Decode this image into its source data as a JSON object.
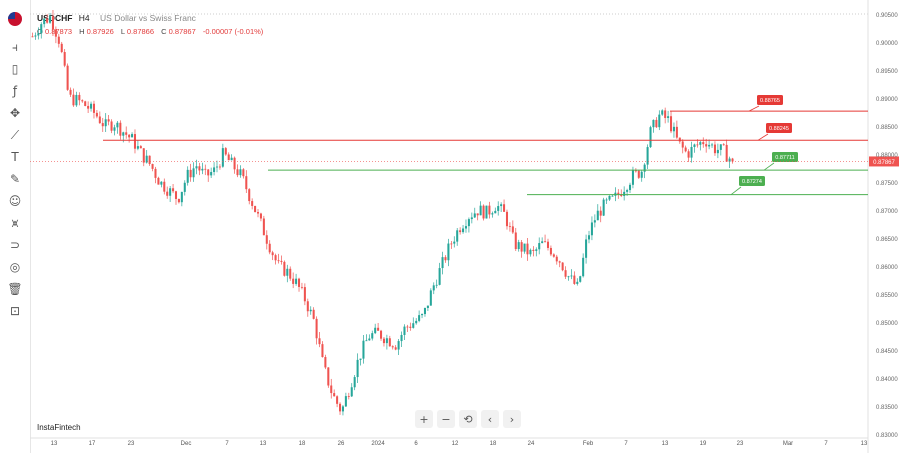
{
  "header": {
    "symbol": "USDCHF",
    "timeframe": "H4",
    "description": "US Dollar vs Swiss Franc",
    "open_label": "O",
    "open": "0.87873",
    "high_label": "H",
    "high": "0.87926",
    "low_label": "L",
    "low": "0.87866",
    "close_label": "C",
    "close": "0.87867",
    "change": "-0.00007 (-0.01%)"
  },
  "brand": "InstaFintech",
  "nav_buttons": [
    "+",
    "−",
    "⟲",
    "‹",
    "›"
  ],
  "colors": {
    "up": "#26a69a",
    "down": "#ef5350",
    "resistance": "#e53935",
    "support": "#4caf50",
    "price_tag": "#ef5350"
  },
  "chart_data": {
    "type": "candlestick",
    "ylim": [
      0.83,
      0.905
    ],
    "y_ticks": [
      "0.90500",
      "0.90000",
      "0.89500",
      "0.89000",
      "0.88500",
      "0.88000",
      "0.87500",
      "0.87000",
      "0.86500",
      "0.86000",
      "0.85500",
      "0.85000",
      "0.84500",
      "0.84000",
      "0.83500",
      "0.83000"
    ],
    "x_ticks": [
      "13",
      "17",
      "23",
      "Dec",
      "7",
      "13",
      "18",
      "26",
      "2024",
      "6",
      "12",
      "18",
      "24",
      "Feb",
      "7",
      "13",
      "19",
      "23",
      "Mar",
      "7",
      "13"
    ],
    "current_price": "0.87867",
    "levels": [
      {
        "label": "0.88765",
        "value": 0.88765,
        "kind": "resistance"
      },
      {
        "label": "0.88245",
        "value": 0.88245,
        "kind": "resistance"
      },
      {
        "label": "0.87711",
        "value": 0.87711,
        "kind": "support"
      },
      {
        "label": "0.87274",
        "value": 0.87274,
        "kind": "support"
      }
    ],
    "close_path": [
      0.901,
      0.9035,
      0.9045,
      0.9,
      0.89,
      0.8895,
      0.8885,
      0.887,
      0.885,
      0.8855,
      0.884,
      0.8825,
      0.88,
      0.878,
      0.875,
      0.8735,
      0.872,
      0.876,
      0.878,
      0.876,
      0.877,
      0.88,
      0.878,
      0.876,
      0.872,
      0.868,
      0.864,
      0.86,
      0.859,
      0.857,
      0.854,
      0.85,
      0.842,
      0.837,
      0.834,
      0.839,
      0.844,
      0.8475,
      0.848,
      0.847,
      0.846,
      0.849,
      0.85,
      0.851,
      0.856,
      0.86,
      0.864,
      0.867,
      0.869,
      0.87,
      0.8695,
      0.871,
      0.869,
      0.864,
      0.863,
      0.862,
      0.864,
      0.863,
      0.861,
      0.858,
      0.856,
      0.865,
      0.869,
      0.871,
      0.872,
      0.874,
      0.876,
      0.877,
      0.884,
      0.887,
      0.886,
      0.882,
      0.88,
      0.8815,
      0.8825,
      0.881,
      0.8805,
      0.87867
    ]
  }
}
